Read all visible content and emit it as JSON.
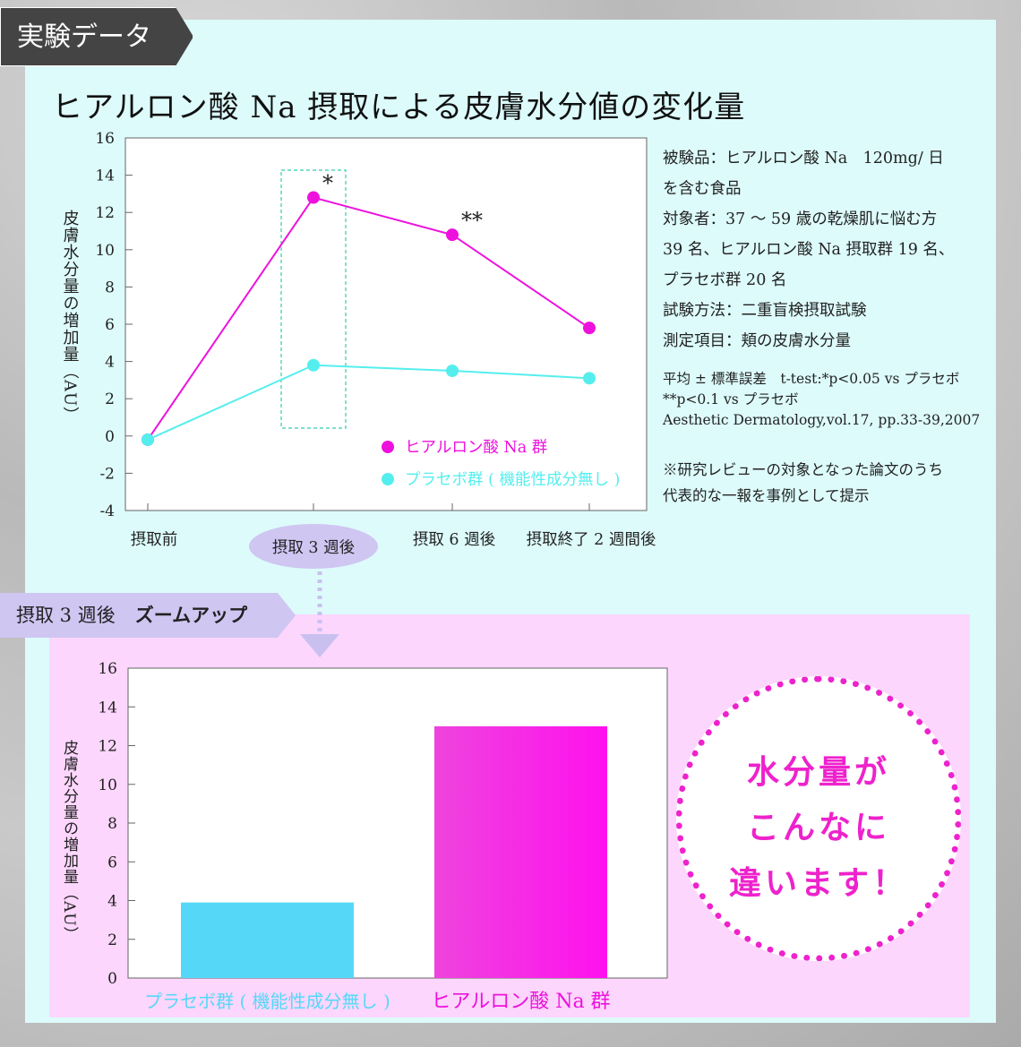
{
  "tab": "実験データ",
  "title": "ヒアルロン酸 Na 摂取による皮膚水分値の変化量",
  "info_lines": [
    "被験品：ヒアルロン酸 Na　120mg/ 日",
    "を含む食品",
    "対象者：37 ～ 59 歳の乾燥肌に悩む方",
    "39 名、ヒアルロン酸 Na 摂取群 19 名、",
    "プラセボ群 20 名",
    "試験方法：二重盲検摂取試験",
    "測定項目：頬の皮膚水分量"
  ],
  "ref_lines": [
    "平均 ± 標準誤差　t-test:*p<0.05 vs プラセボ",
    "**p<0.1 vs プラセボ",
    "Aesthetic Dermatology,vol.17, pp.33-39,2007"
  ],
  "note_lines": [
    "※研究レビューの対象となった論文のうち",
    "代表的な一報を事例として提示"
  ],
  "zoom_tab": {
    "label": "摂取 3 週後",
    "bold": "ズームアップ"
  },
  "bubble_lines": [
    "水分量が",
    "こんなに",
    "違います！"
  ],
  "colors": {
    "hyaluronic": "#ee11dd",
    "placebo": "#55eeee",
    "bar_placebo": "#55d8f8",
    "accent": "#ee22cc"
  },
  "chart_data": [
    {
      "type": "line",
      "ylabel": "皮膚水分量の増加量（AU）",
      "ylim": [
        -4,
        16
      ],
      "yticks": [
        -4,
        -2,
        0,
        2,
        4,
        6,
        8,
        10,
        12,
        14,
        16
      ],
      "categories": [
        "摂取前",
        "摂取 3 週後",
        "摂取 6 週後",
        "摂取終了 2 週間後"
      ],
      "series": [
        {
          "name": "ヒアルロン酸 Na 群",
          "values": [
            -0.2,
            12.8,
            10.8,
            5.8
          ],
          "annotations": [
            "",
            "*",
            "**",
            ""
          ]
        },
        {
          "name": "プラセボ群 ( 機能性成分無し )",
          "values": [
            -0.2,
            3.8,
            3.5,
            3.1
          ]
        }
      ],
      "legend": "bottom-right",
      "grid": false
    },
    {
      "type": "bar",
      "ylabel": "皮膚水分量の増加量（AU）",
      "ylim": [
        0,
        16
      ],
      "yticks": [
        0,
        2,
        4,
        6,
        8,
        10,
        12,
        14,
        16
      ],
      "categories": [
        "プラセボ群 ( 機能性成分無し )",
        "ヒアルロン酸 Na 群"
      ],
      "values": [
        3.9,
        13.0
      ],
      "grid": false
    }
  ]
}
